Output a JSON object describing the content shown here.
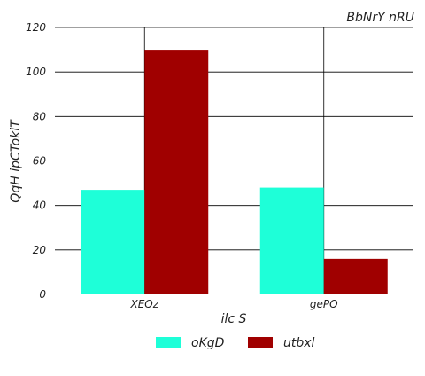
{
  "chart_data": {
    "type": "bar",
    "title": "BbNrY nRU",
    "xlabel": "ilc S",
    "ylabel": "QqH  ipCTokiT",
    "categories": [
      "XEOz",
      "gePO"
    ],
    "series": [
      {
        "name": "oKgD",
        "values": [
          47,
          48
        ],
        "color": "#1effd8"
      },
      {
        "name": "utbxl",
        "values": [
          110,
          16
        ],
        "color": "#a00000"
      }
    ],
    "ylim": [
      0,
      120
    ],
    "yticks": [
      0,
      20,
      40,
      60,
      80,
      100,
      120
    ],
    "grid": "horizontal and vertical at category centers",
    "legend_position": "bottom"
  }
}
